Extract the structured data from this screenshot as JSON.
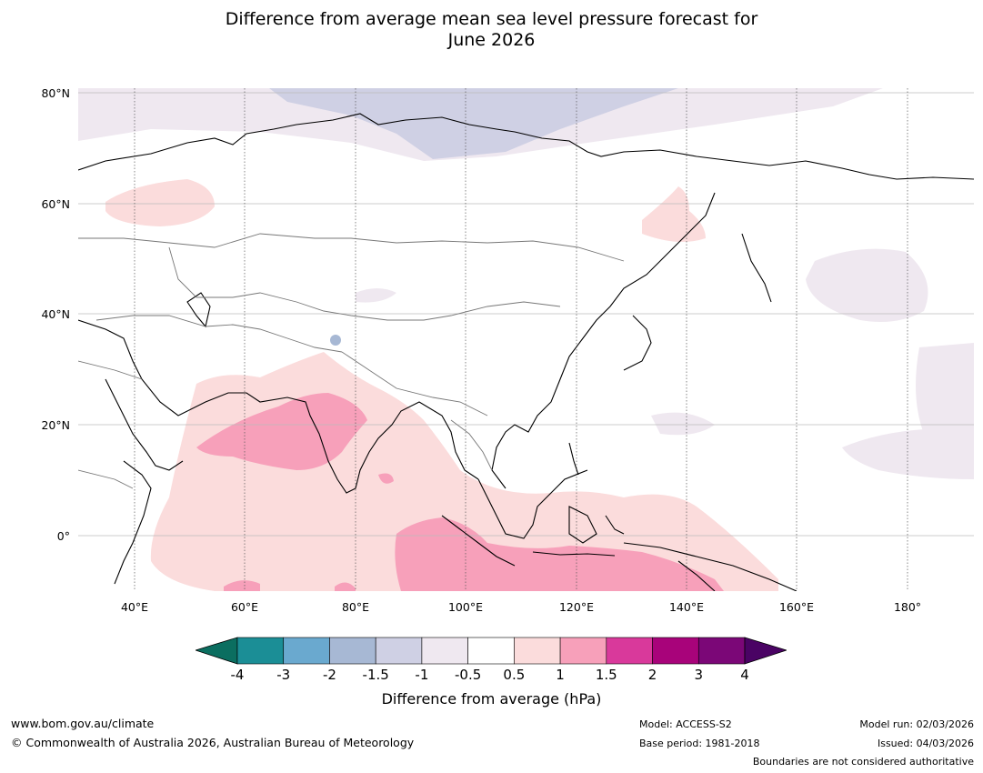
{
  "title_line1": "Difference from average mean sea level pressure forecast for",
  "title_line2": "June 2026",
  "lat_labels": [
    "80°N",
    "60°N",
    "40°N",
    "20°N",
    "0°"
  ],
  "lon_labels": [
    "40°E",
    "60°E",
    "80°E",
    "100°E",
    "120°E",
    "140°E",
    "160°E",
    "180°"
  ],
  "colorbar": {
    "ticks": [
      "-4",
      "-3",
      "-2",
      "-1.5",
      "-1",
      "-0.5",
      "0.5",
      "1",
      "1.5",
      "2",
      "3",
      "4"
    ],
    "colors": [
      "#0b6e60",
      "#1b8e96",
      "#6aa9cf",
      "#a7b8d4",
      "#cfd0e4",
      "#efe8f0",
      "#ffffff",
      "#fbdcdc",
      "#f7a0ba",
      "#d9399b",
      "#a8037a",
      "#7b0777",
      "#4a0364"
    ],
    "label": "Difference from average (hPa)"
  },
  "footer": {
    "url": "www.bom.gov.au/climate",
    "copyright": "© Commonwealth of Australia 2026, Australian Bureau of Meteorology",
    "model": "Model: ACCESS-S2",
    "base_period": "Base period: 1981-2018",
    "model_run": "Model run: 02/03/2026",
    "issued": "Issued: 04/03/2026",
    "disclaimer": "Boundaries are not considered authoritative"
  }
}
